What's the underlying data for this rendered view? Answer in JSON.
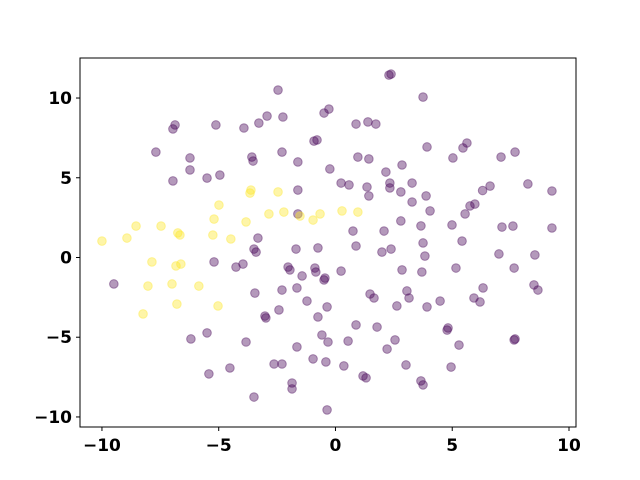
{
  "chart_data": {
    "type": "scatter",
    "xlim": [
      -10.94,
      10.3
    ],
    "ylim": [
      -10.63,
      12.51
    ],
    "xticks": [
      {
        "value": -10,
        "label": "−10"
      },
      {
        "value": -5,
        "label": "−5"
      },
      0,
      5,
      10
    ],
    "yticks": [
      {
        "value": -10,
        "label": "−10"
      },
      {
        "value": -5,
        "label": "−5"
      },
      0,
      5,
      10
    ],
    "alpha": 0.4,
    "series": [
      {
        "color": "#440154",
        "x": [
          2.38,
          2.29,
          -2.46,
          3.75,
          -6.87,
          -6.96,
          -5.12,
          -3.92,
          -3.28,
          -2.93,
          -2.25,
          -0.49,
          -0.28,
          0.88,
          1.39,
          1.73,
          -0.92,
          -0.79,
          -7.69,
          -6.23,
          -6.23,
          -6.96,
          -5.5,
          -4.95,
          -3.58,
          -3.53,
          -2.29,
          -1.61,
          -0.24,
          0.96,
          1.43,
          2.85,
          3.92,
          5.03,
          5.63,
          5.46,
          7.09,
          7.69,
          8.24,
          9.27,
          6.62,
          6.3,
          5.76,
          5.97,
          5.55,
          5.42,
          4.99,
          3.28,
          3.28,
          2.33,
          2.33,
          1.35,
          0.24,
          0.58,
          1.43,
          2.16,
          2.8,
          3.88,
          4.05,
          3.66,
          2.8,
          2.08,
          0.75,
          0.88,
          1.99,
          2.38,
          3.75,
          3.83,
          2.85,
          3.7,
          5.16,
          4.48,
          4.82,
          4.78,
          5.29,
          4.95,
          6.32,
          5.93,
          6.19,
          7.0,
          7.6,
          7.13,
          9.27,
          7.65,
          8.5,
          8.67,
          8.54,
          3.15,
          3.06,
          2.63,
          1.65,
          1.48,
          0.24,
          0.88,
          1.78,
          2.55,
          2.21,
          3.02,
          1.18,
          1.31,
          3.66,
          3.75,
          3.92,
          -1.69,
          -0.88,
          -0.84,
          -0.75,
          -0.45,
          -0.49,
          -2.03,
          -1.95,
          -1.43,
          -2.29,
          -1.22,
          -1.65,
          -2.42,
          -2.98,
          -3.02,
          -3.83,
          -3.45,
          -3.96,
          -4.26,
          -5.2,
          -5.5,
          -6.19,
          -5.42,
          -4.52,
          -3.49,
          -2.63,
          -2.29,
          -1.86,
          -1.86,
          -1.65,
          -0.96,
          -0.75,
          -0.58,
          -0.36,
          -0.32,
          -0.41,
          -0.36,
          0.36,
          0.54,
          -1.61,
          -3.32,
          -3.49,
          -3.4,
          -1.61,
          -9.49,
          7.69,
          7.65
        ],
        "values": [
          11.5,
          11.44,
          10.5,
          10.06,
          8.31,
          8.06,
          8.31,
          8.12,
          8.43,
          8.87,
          8.81,
          9.06,
          9.31,
          8.37,
          8.5,
          8.37,
          7.3,
          7.37,
          6.61,
          6.24,
          5.49,
          4.8,
          4.98,
          5.17,
          6.3,
          6.05,
          6.61,
          5.99,
          5.55,
          6.3,
          6.18,
          5.8,
          6.93,
          6.24,
          7.18,
          6.87,
          6.3,
          6.61,
          4.61,
          4.17,
          4.48,
          4.2,
          3.23,
          3.35,
          2.73,
          1.03,
          2.04,
          4.67,
          3.48,
          4.67,
          4.36,
          4.42,
          4.67,
          4.55,
          3.86,
          5.36,
          4.11,
          3.86,
          2.92,
          1.98,
          2.29,
          1.66,
          1.66,
          0.72,
          0.34,
          0.53,
          0.91,
          0.09,
          -0.78,
          -0.91,
          -0.66,
          -2.73,
          -4.42,
          -4.55,
          -5.49,
          -6.87,
          -1.91,
          -2.54,
          -2.79,
          0.22,
          1.97,
          1.91,
          1.85,
          -0.66,
          -1.72,
          -2.04,
          0.16,
          -2.54,
          -2.1,
          -3.04,
          -2.54,
          -2.29,
          -0.85,
          -4.23,
          -4.36,
          -5.17,
          -5.74,
          -6.74,
          -7.43,
          -7.55,
          -7.74,
          -7.99,
          -3.1,
          0.53,
          -0.66,
          -0.91,
          0.6,
          -1.29,
          -1.41,
          -0.6,
          -0.78,
          -1.16,
          -2.04,
          -2.73,
          -1.91,
          -3.29,
          -3.79,
          -3.67,
          -5.3,
          -2.23,
          -0.41,
          -0.6,
          -0.28,
          -4.73,
          -5.11,
          -7.3,
          -6.93,
          -8.75,
          -6.68,
          -6.68,
          -7.87,
          -8.24,
          -5.61,
          -6.36,
          -3.73,
          -4.86,
          -3.1,
          -5.3,
          -6.55,
          -9.56,
          -6.8,
          -5.24,
          4.23,
          1.22,
          0.53,
          0.34,
          2.73,
          -1.66,
          -5.11,
          -5.17
        ]
      },
      {
        "color": "#fde725",
        "x": [
          -10.0,
          -8.93,
          -8.54,
          -7.47,
          -7.86,
          -6.75,
          -6.66,
          -7.0,
          -6.83,
          -6.62,
          -8.03,
          -8.24,
          -6.79,
          -5.85,
          -5.25,
          -5.2,
          -4.99,
          -4.48,
          -3.83,
          -5.03,
          -3.66,
          -3.62,
          -2.85,
          -2.46,
          -2.21,
          -1.52,
          -0.96,
          -0.66,
          0.28,
          0.96
        ],
        "values": [
          1.03,
          1.22,
          1.97,
          1.97,
          -0.28,
          1.54,
          1.41,
          -1.66,
          -0.53,
          -0.41,
          -1.79,
          -3.54,
          -2.92,
          -1.79,
          1.41,
          2.41,
          3.29,
          1.16,
          2.23,
          -3.04,
          4.04,
          4.23,
          2.73,
          4.11,
          2.85,
          2.6,
          2.35,
          2.73,
          2.92,
          2.85
        ]
      }
    ]
  }
}
